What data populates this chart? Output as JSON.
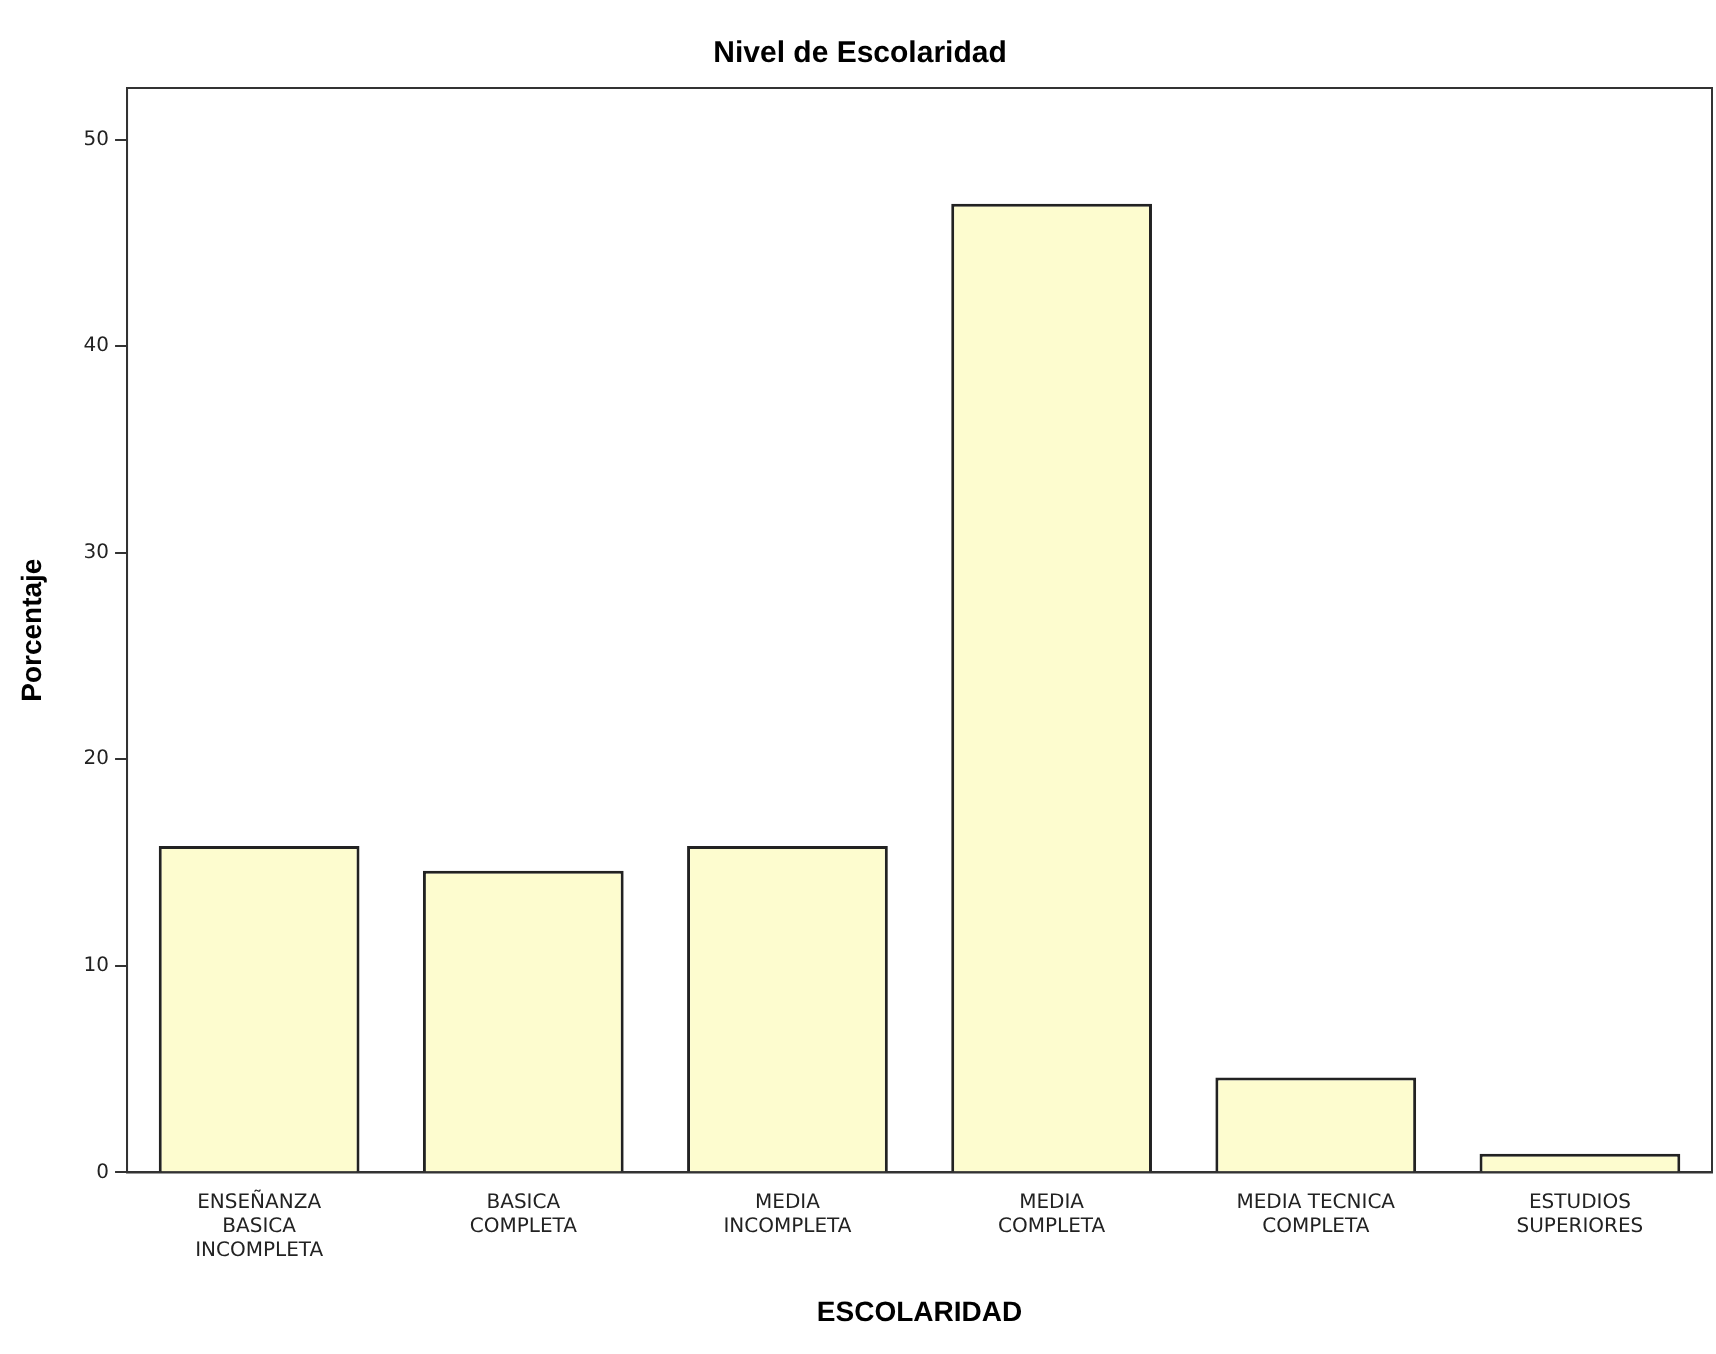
{
  "chart_data": {
    "type": "bar",
    "title": "Nivel de Escolaridad",
    "xlabel": "ESCOLARIDAD",
    "ylabel": "Porcentaje",
    "categories": [
      "ENSEÑANZA\nBASICA\nINCOMPLETA",
      "BASICA\nCOMPLETA",
      "MEDIA\nINCOMPLETA",
      "MEDIA\nCOMPLETA",
      "MEDIA TECNICA\nCOMPLETA",
      "ESTUDIOS\nSUPERIORES"
    ],
    "values": [
      15.8,
      14.6,
      15.8,
      46.9,
      4.6,
      0.9
    ],
    "color": "#fdfccf",
    "ylim": [
      0,
      52.5
    ],
    "yticks": [
      0,
      10,
      20,
      30,
      40,
      50
    ],
    "grid": false,
    "legend": false
  }
}
